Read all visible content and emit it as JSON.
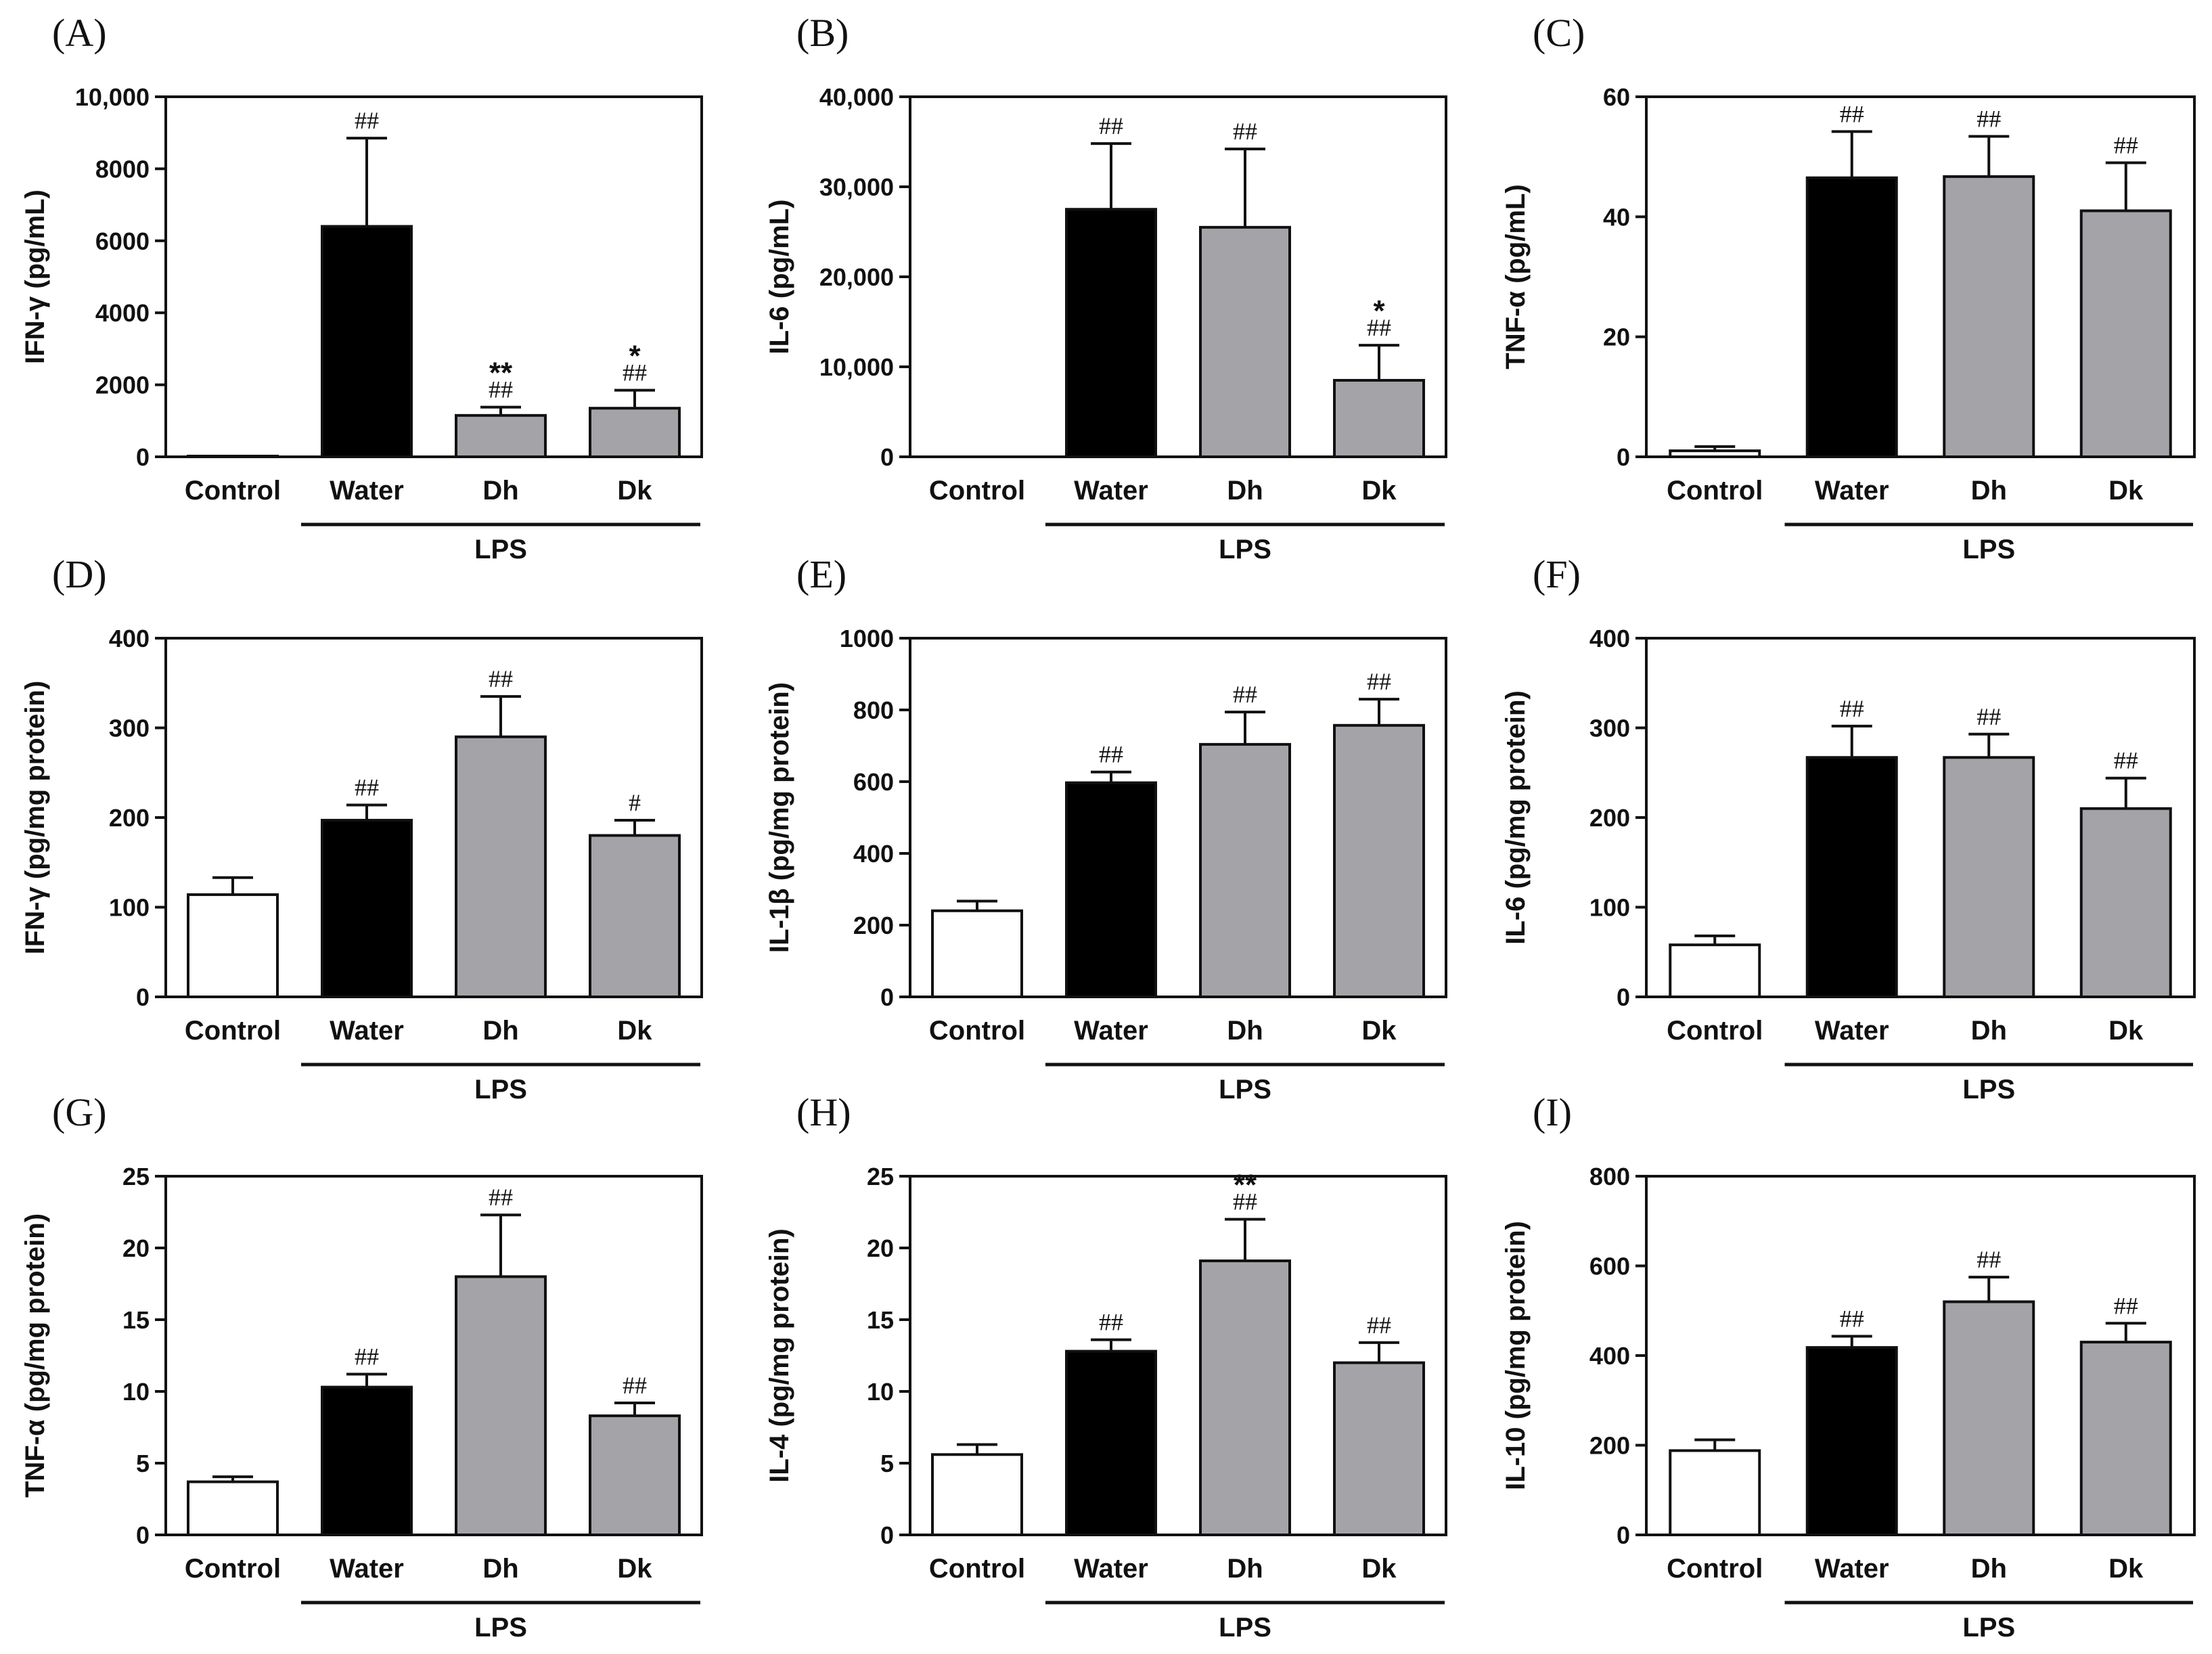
{
  "colors": {
    "control": "#ffffff",
    "water": "#000000",
    "treatment": "#a3a3a8",
    "stroke": "#111111"
  },
  "chart_data": [
    {
      "type": "bar",
      "panel": "(A)",
      "ylabel": "IFN-γ (pg/mL)",
      "group_label": "LPS",
      "categories": [
        "Control",
        "Water",
        "Dh",
        "Dk"
      ],
      "values": [
        20,
        6400,
        1150,
        1350
      ],
      "errors": [
        0,
        2450,
        230,
        500
      ],
      "ylim": [
        0,
        10000
      ],
      "yticks": [
        0,
        2000,
        4000,
        6000,
        8000,
        10000
      ],
      "ytick_labels": [
        "0",
        "2000",
        "4000",
        "6000",
        "8000",
        "10,000"
      ],
      "hash": [
        "",
        "##",
        "##",
        "##"
      ],
      "star": [
        "",
        "",
        "**",
        "*"
      ]
    },
    {
      "type": "bar",
      "panel": "(B)",
      "ylabel": "IL-6 (pg/mL)",
      "group_label": "LPS",
      "categories": [
        "Control",
        "Water",
        "Dh",
        "Dk"
      ],
      "values": [
        0,
        27500,
        25500,
        8500
      ],
      "errors": [
        0,
        7300,
        8700,
        3900
      ],
      "ylim": [
        0,
        40000
      ],
      "yticks": [
        0,
        10000,
        20000,
        30000,
        40000
      ],
      "ytick_labels": [
        "0",
        "10,000",
        "20,000",
        "30,000",
        "40,000"
      ],
      "hash": [
        "",
        "##",
        "##",
        "##"
      ],
      "star": [
        "",
        "",
        "",
        "*"
      ]
    },
    {
      "type": "bar",
      "panel": "(C)",
      "ylabel": "TNF-α (pg/mL)",
      "group_label": "LPS",
      "categories": [
        "Control",
        "Water",
        "Dh",
        "Dk"
      ],
      "values": [
        1,
        46.5,
        46.7,
        41
      ],
      "errors": [
        0.7,
        7.7,
        6.7,
        8
      ],
      "ylim": [
        0,
        60
      ],
      "yticks": [
        0,
        20,
        40,
        60
      ],
      "ytick_labels": [
        "0",
        "20",
        "40",
        "60"
      ],
      "hash": [
        "",
        "##",
        "##",
        "##"
      ],
      "star": [
        "",
        "",
        "",
        ""
      ]
    },
    {
      "type": "bar",
      "panel": "(D)",
      "ylabel": "IFN-γ (pg/mg protein)",
      "group_label": "LPS",
      "categories": [
        "Control",
        "Water",
        "Dh",
        "Dk"
      ],
      "values": [
        114,
        197,
        290,
        180
      ],
      "errors": [
        19,
        17,
        45,
        17
      ],
      "ylim": [
        0,
        400
      ],
      "yticks": [
        0,
        100,
        200,
        300,
        400
      ],
      "ytick_labels": [
        "0",
        "100",
        "200",
        "300",
        "400"
      ],
      "hash": [
        "",
        "##",
        "##",
        "#"
      ],
      "star": [
        "",
        "",
        "",
        ""
      ]
    },
    {
      "type": "bar",
      "panel": "(E)",
      "ylabel": "IL-1β (pg/mg protein)",
      "group_label": "LPS",
      "categories": [
        "Control",
        "Water",
        "Dh",
        "Dk"
      ],
      "values": [
        240,
        597,
        704,
        757
      ],
      "errors": [
        27,
        30,
        90,
        73
      ],
      "ylim": [
        0,
        1000
      ],
      "yticks": [
        0,
        200,
        400,
        600,
        800,
        1000
      ],
      "ytick_labels": [
        "0",
        "200",
        "400",
        "600",
        "800",
        "1000"
      ],
      "hash": [
        "",
        "##",
        "##",
        "##"
      ],
      "star": [
        "",
        "",
        "",
        ""
      ]
    },
    {
      "type": "bar",
      "panel": "(F)",
      "ylabel": "IL-6 (pg/mg protein)",
      "group_label": "LPS",
      "categories": [
        "Control",
        "Water",
        "Dh",
        "Dk"
      ],
      "values": [
        58,
        267,
        267,
        210
      ],
      "errors": [
        10,
        35,
        26,
        34
      ],
      "ylim": [
        0,
        400
      ],
      "yticks": [
        0,
        100,
        200,
        300,
        400
      ],
      "ytick_labels": [
        "0",
        "100",
        "200",
        "300",
        "400"
      ],
      "hash": [
        "",
        "##",
        "##",
        "##"
      ],
      "star": [
        "",
        "",
        "",
        ""
      ]
    },
    {
      "type": "bar",
      "panel": "(G)",
      "ylabel": "TNF-α (pg/mg protein)",
      "group_label": "LPS",
      "categories": [
        "Control",
        "Water",
        "Dh",
        "Dk"
      ],
      "values": [
        3.7,
        10.3,
        18,
        8.3
      ],
      "errors": [
        0.35,
        0.9,
        4.3,
        0.9
      ],
      "ylim": [
        0,
        25
      ],
      "yticks": [
        0,
        5,
        10,
        15,
        20,
        25
      ],
      "ytick_labels": [
        "0",
        "5",
        "10",
        "15",
        "20",
        "25"
      ],
      "hash": [
        "",
        "##",
        "##",
        "##"
      ],
      "star": [
        "",
        "",
        "",
        ""
      ]
    },
    {
      "type": "bar",
      "panel": "(H)",
      "ylabel": "IL-4 (pg/mg protein)",
      "group_label": "LPS",
      "categories": [
        "Control",
        "Water",
        "Dh",
        "Dk"
      ],
      "values": [
        5.6,
        12.8,
        19.1,
        12
      ],
      "errors": [
        0.7,
        0.8,
        2.9,
        1.4
      ],
      "ylim": [
        0,
        25
      ],
      "yticks": [
        0,
        5,
        10,
        15,
        20,
        25
      ],
      "ytick_labels": [
        "0",
        "5",
        "10",
        "15",
        "20",
        "25"
      ],
      "hash": [
        "",
        "##",
        "##",
        "##"
      ],
      "star": [
        "",
        "",
        "**",
        ""
      ]
    },
    {
      "type": "bar",
      "panel": "(I)",
      "ylabel": "IL-10 (pg/mg protein)",
      "group_label": "LPS",
      "categories": [
        "Control",
        "Water",
        "Dh",
        "Dk"
      ],
      "values": [
        188,
        418,
        520,
        430
      ],
      "errors": [
        24,
        25,
        55,
        42
      ],
      "ylim": [
        0,
        800
      ],
      "yticks": [
        0,
        200,
        400,
        600,
        800
      ],
      "ytick_labels": [
        "0",
        "200",
        "400",
        "600",
        "800"
      ],
      "hash": [
        "",
        "##",
        "##",
        "##"
      ],
      "star": [
        "",
        "",
        "",
        ""
      ]
    }
  ]
}
